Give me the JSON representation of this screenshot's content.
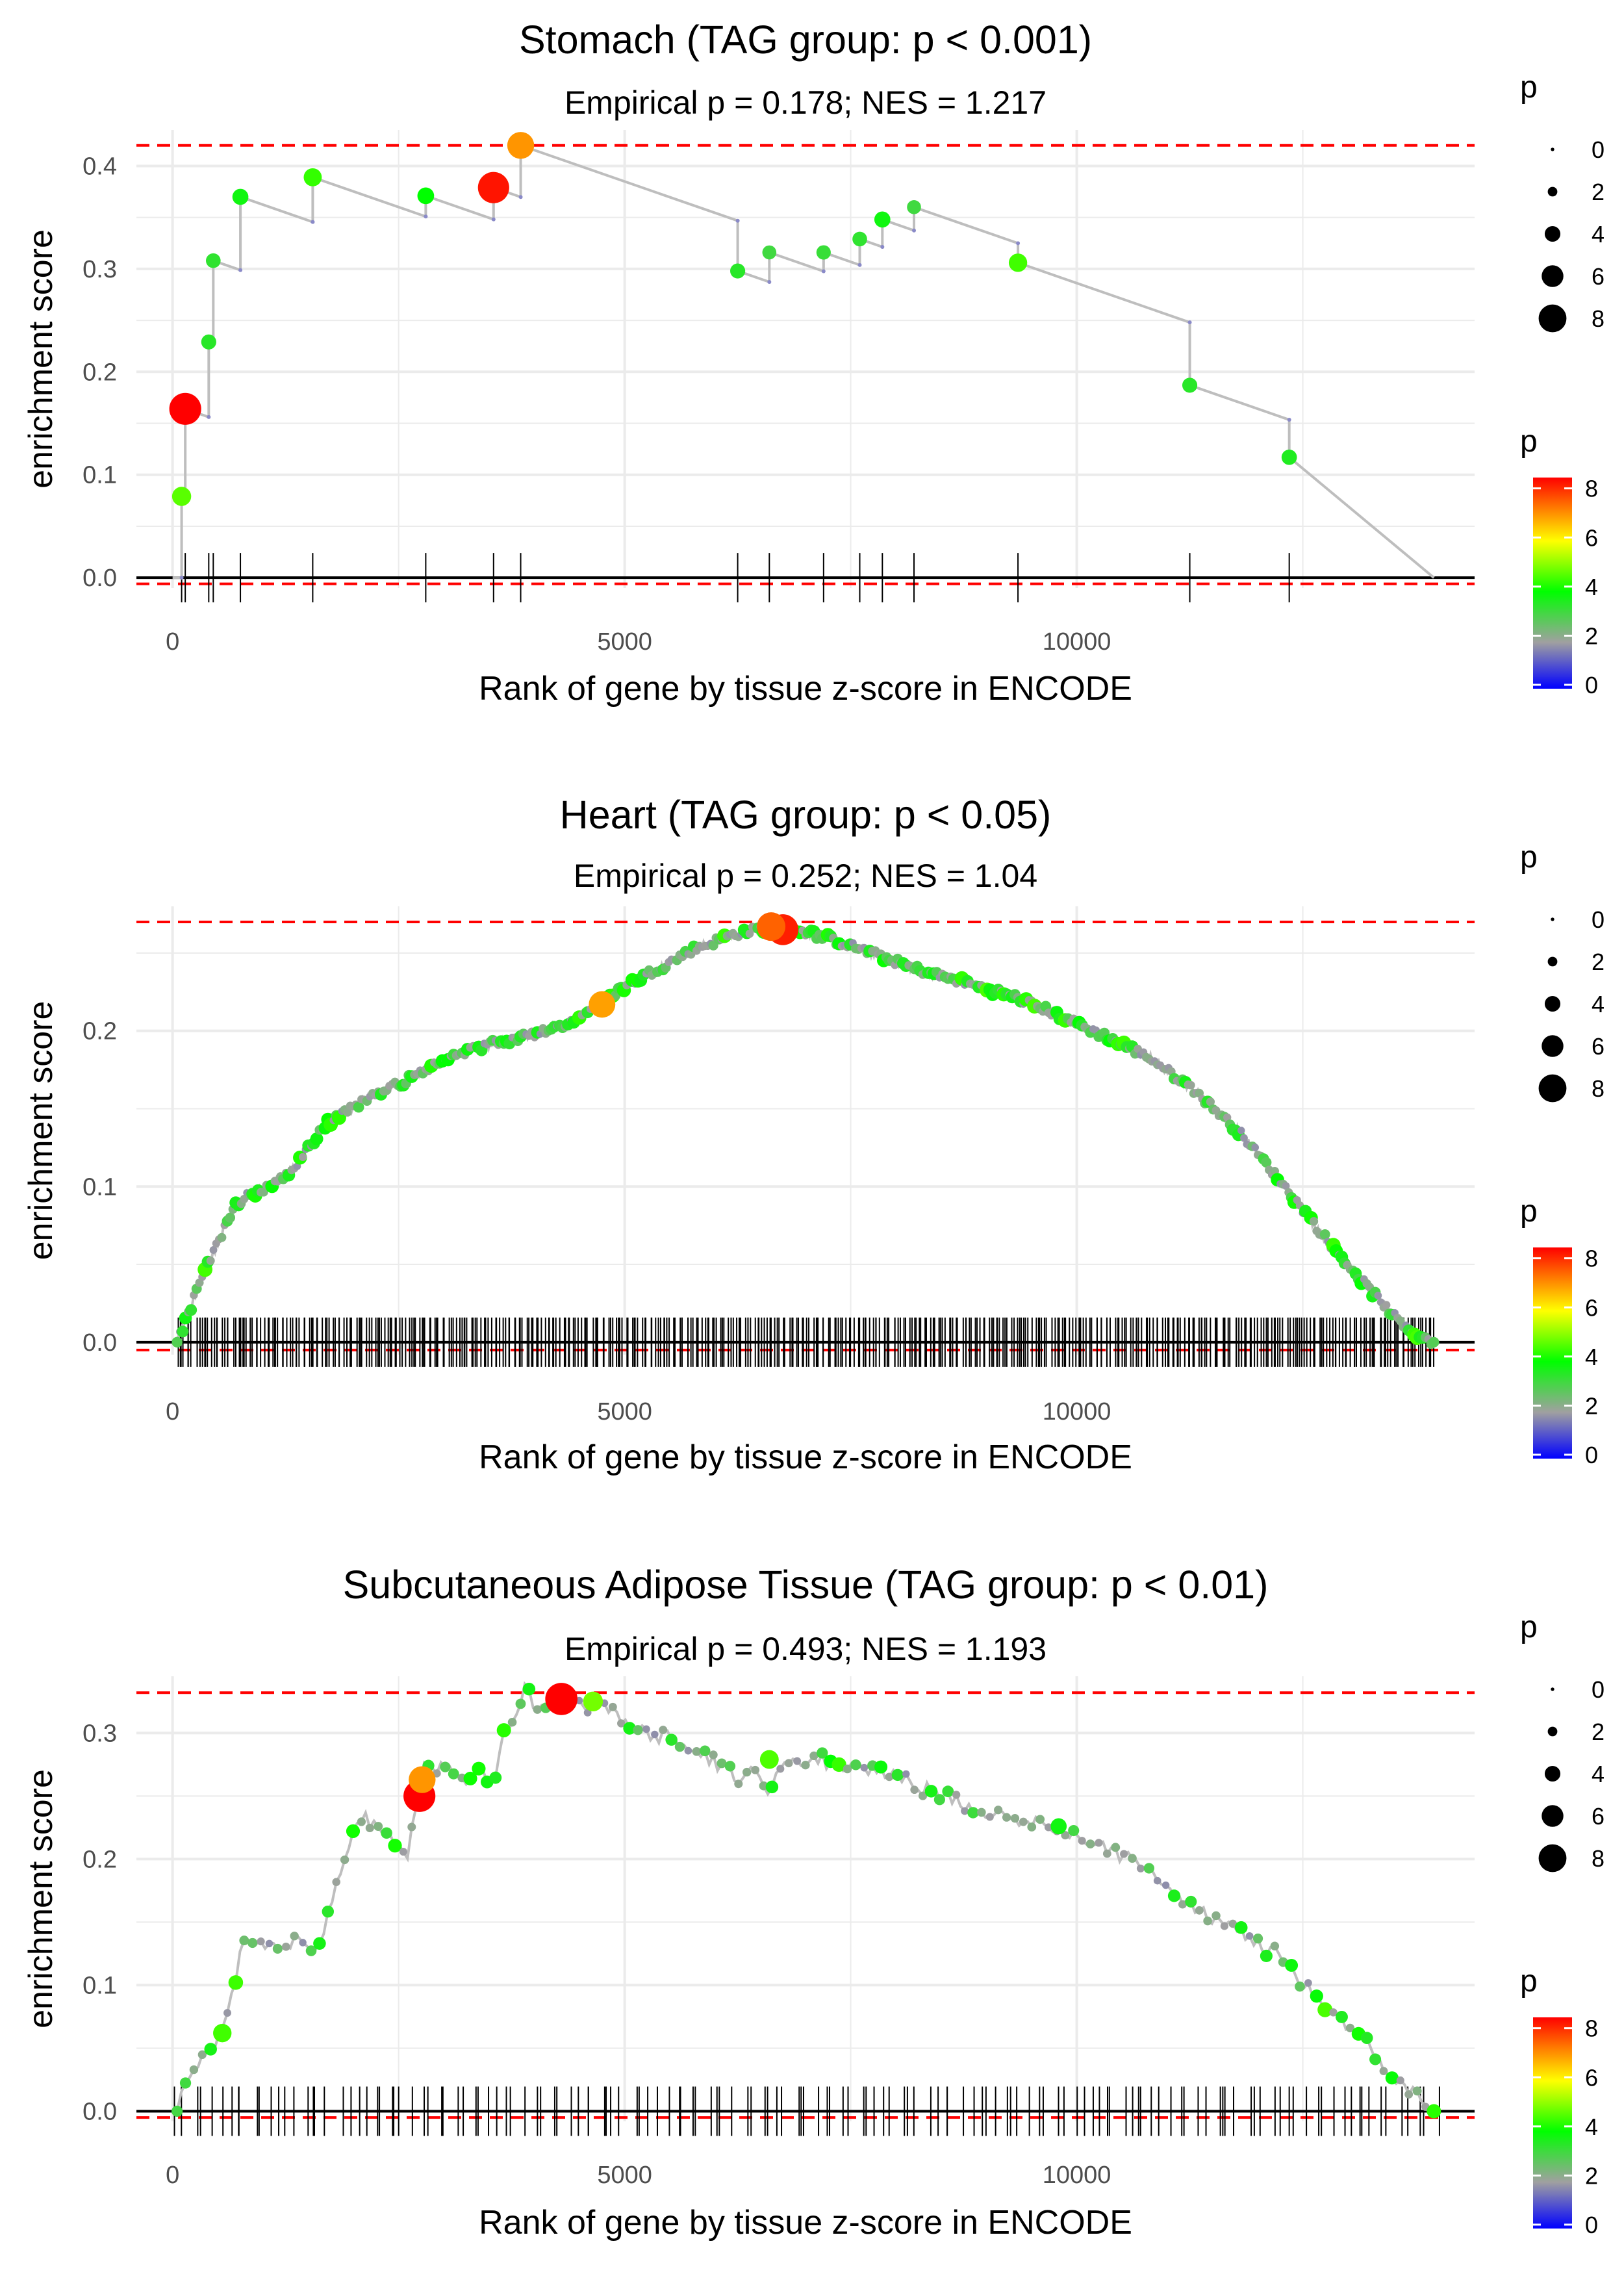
{
  "chart_data": [
    {
      "type": "line",
      "title": "Stomach (TAG group: p < 0.001)",
      "subtitle": "Empirical p = 0.178; NES = 1.217",
      "xlabel": "Rank of gene by tissue z-score in ENCODE",
      "ylabel": "enrichment score",
      "xlim": [
        -400,
        14400
      ],
      "ylim": [
        -0.01,
        0.435
      ],
      "xticks": [
        0,
        5000,
        10000
      ],
      "yticks": [
        0.0,
        0.1,
        0.2,
        0.3,
        0.4
      ],
      "ytick_labels": [
        "0.0",
        "0.1",
        "0.2",
        "0.3",
        "0.4"
      ],
      "max_es": 0.42,
      "min_es": -0.006,
      "mode": "step",
      "hits": [
        {
          "x": 100,
          "es": 0.079,
          "p": 4.5
        },
        {
          "x": 140,
          "es": 0.164,
          "p": 8.3
        },
        {
          "x": 400,
          "es": 0.229,
          "p": 3.3
        },
        {
          "x": 450,
          "es": 0.308,
          "p": 3.2
        },
        {
          "x": 750,
          "es": 0.37,
          "p": 3.6
        },
        {
          "x": 1550,
          "es": 0.389,
          "p": 4.2
        },
        {
          "x": 2800,
          "es": 0.371,
          "p": 3.8
        },
        {
          "x": 3550,
          "es": 0.379,
          "p": 8.1
        },
        {
          "x": 3850,
          "es": 0.42,
          "p": 6.8
        },
        {
          "x": 6250,
          "es": 0.298,
          "p": 3.3
        },
        {
          "x": 6600,
          "es": 0.316,
          "p": 3.0
        },
        {
          "x": 7200,
          "es": 0.316,
          "p": 3.1
        },
        {
          "x": 7600,
          "es": 0.329,
          "p": 3.2
        },
        {
          "x": 7850,
          "es": 0.348,
          "p": 3.6
        },
        {
          "x": 8200,
          "es": 0.36,
          "p": 3.0
        },
        {
          "x": 9350,
          "es": 0.306,
          "p": 4.3
        },
        {
          "x": 11250,
          "es": 0.187,
          "p": 3.3
        },
        {
          "x": 12350,
          "es": 0.117,
          "p": 3.4
        }
      ],
      "end_x": 13950
    },
    {
      "type": "line",
      "title": "Heart (TAG group: p < 0.05)",
      "subtitle": "Empirical p = 0.252; NES = 1.04",
      "xlabel": "Rank of gene by tissue z-score in ENCODE",
      "ylabel": "enrichment score",
      "xlim": [
        -400,
        14400
      ],
      "ylim": [
        -0.008,
        0.28
      ],
      "xticks": [
        0,
        5000,
        10000
      ],
      "yticks": [
        0.0,
        0.1,
        0.2
      ],
      "ytick_labels": [
        "0.0",
        "0.1",
        "0.2"
      ],
      "max_es": 0.27,
      "min_es": -0.005,
      "mode": "dense",
      "curve": [
        [
          50,
          0.0
        ],
        [
          150,
          0.015
        ],
        [
          350,
          0.045
        ],
        [
          550,
          0.07
        ],
        [
          700,
          0.088
        ],
        [
          800,
          0.093
        ],
        [
          1050,
          0.1
        ],
        [
          1350,
          0.112
        ],
        [
          1700,
          0.14
        ],
        [
          2100,
          0.155
        ],
        [
          2650,
          0.17
        ],
        [
          3000,
          0.182
        ],
        [
          3500,
          0.191
        ],
        [
          4000,
          0.198
        ],
        [
          4500,
          0.208
        ],
        [
          4900,
          0.225
        ],
        [
          5300,
          0.238
        ],
        [
          5750,
          0.252
        ],
        [
          6200,
          0.262
        ],
        [
          6700,
          0.268
        ],
        [
          7100,
          0.262
        ],
        [
          7600,
          0.253
        ],
        [
          8200,
          0.24
        ],
        [
          8700,
          0.232
        ],
        [
          9300,
          0.222
        ],
        [
          9800,
          0.21
        ],
        [
          10300,
          0.197
        ],
        [
          10800,
          0.183
        ],
        [
          11300,
          0.162
        ],
        [
          11800,
          0.135
        ],
        [
          12300,
          0.1
        ],
        [
          12800,
          0.063
        ],
        [
          13300,
          0.03
        ],
        [
          13650,
          0.008
        ],
        [
          13950,
          0.0
        ]
      ],
      "highlights": [
        {
          "x": 4750,
          "es": 0.217,
          "p": 6.7
        },
        {
          "x": 6750,
          "es": 0.265,
          "p": 8.0
        },
        {
          "x": 6620,
          "es": 0.267,
          "p": 7.3
        }
      ],
      "hit_start": 50,
      "hit_end": 13950,
      "hit_count": 480,
      "end_x": 13950
    },
    {
      "type": "line",
      "title": "Subcutaneous Adipose Tissue (TAG group: p < 0.01)",
      "subtitle": "Empirical p = 0.493; NES = 1.193",
      "xlabel": "Rank of gene by tissue z-score in ENCODE",
      "ylabel": "enrichment score",
      "xlim": [
        -400,
        14400
      ],
      "ylim": [
        -0.008,
        0.345
      ],
      "xticks": [
        0,
        5000,
        10000
      ],
      "yticks": [
        0.0,
        0.1,
        0.2,
        0.3
      ],
      "ytick_labels": [
        "0.0",
        "0.1",
        "0.2",
        "0.3"
      ],
      "max_es": 0.332,
      "min_es": -0.005,
      "mode": "medium",
      "curve": [
        [
          50,
          0.0
        ],
        [
          80,
          0.01
        ],
        [
          200,
          0.032
        ],
        [
          400,
          0.048
        ],
        [
          600,
          0.07
        ],
        [
          800,
          0.14
        ],
        [
          1050,
          0.132
        ],
        [
          1300,
          0.135
        ],
        [
          1600,
          0.13
        ],
        [
          2050,
          0.228
        ],
        [
          2150,
          0.232
        ],
        [
          2600,
          0.205
        ],
        [
          2700,
          0.245
        ],
        [
          2750,
          0.275
        ],
        [
          2850,
          0.277
        ],
        [
          3200,
          0.262
        ],
        [
          3400,
          0.272
        ],
        [
          3550,
          0.262
        ],
        [
          3650,
          0.295
        ],
        [
          3750,
          0.31
        ],
        [
          3880,
          0.335
        ],
        [
          4050,
          0.32
        ],
        [
          4300,
          0.33
        ],
        [
          4600,
          0.32
        ],
        [
          4700,
          0.325
        ],
        [
          5000,
          0.31
        ],
        [
          5300,
          0.295
        ],
        [
          5500,
          0.3
        ],
        [
          5800,
          0.285
        ],
        [
          6250,
          0.265
        ],
        [
          6450,
          0.27
        ],
        [
          6600,
          0.255
        ],
        [
          6800,
          0.275
        ],
        [
          7100,
          0.28
        ],
        [
          7600,
          0.27
        ],
        [
          8000,
          0.265
        ],
        [
          8500,
          0.25
        ],
        [
          9100,
          0.235
        ],
        [
          9700,
          0.225
        ],
        [
          10200,
          0.212
        ],
        [
          10700,
          0.195
        ],
        [
          11200,
          0.168
        ],
        [
          11700,
          0.145
        ],
        [
          12200,
          0.125
        ],
        [
          12750,
          0.083
        ],
        [
          13150,
          0.057
        ],
        [
          13550,
          0.025
        ],
        [
          13950,
          0.0
        ]
      ],
      "highlights": [
        {
          "x": 2730,
          "es": 0.25,
          "p": 8.3
        },
        {
          "x": 2760,
          "es": 0.263,
          "p": 6.8
        },
        {
          "x": 4300,
          "es": 0.327,
          "p": 8.4
        },
        {
          "x": 4650,
          "es": 0.325,
          "p": 4.7
        },
        {
          "x": 6600,
          "es": 0.279,
          "p": 4.4
        },
        {
          "x": 9800,
          "es": 0.226,
          "p": 3.6
        },
        {
          "x": 550,
          "es": 0.062,
          "p": 4.3
        }
      ],
      "hit_start": 50,
      "hit_end": 13950,
      "hit_count": 150,
      "end_x": 13950
    }
  ],
  "legend": {
    "size_title": "p",
    "size_labels": [
      "0",
      "2",
      "4",
      "6",
      "8"
    ],
    "color_title": "p",
    "color_labels": [
      "0",
      "2",
      "4",
      "6",
      "8"
    ],
    "color_stops": [
      "#0000ff",
      "#a0a0a0",
      "#00ff00",
      "#ffff00",
      "#ff8000",
      "#ff0000"
    ]
  },
  "colors": {
    "line": "#bebebe",
    "dashed": "#ff0000",
    "grid": "#ebebeb",
    "hit_tick": "#000000"
  }
}
